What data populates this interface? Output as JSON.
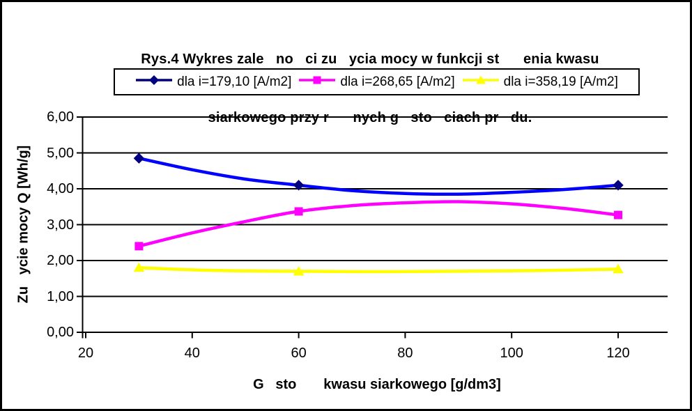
{
  "title": {
    "line1": "Rys.4 Wykres zale   no   ci zu   ycia mocy w funkcji st      enia kwasu",
    "line2": "siarkowego przy r      nych g   sto   ciach pr   du."
  },
  "chart_data": {
    "type": "line",
    "title": "Rys.4 Wykres zale no ci zu ycia mocy w funkcji st enia kwasu siarkowego przy r nych g sto ciach pr du.",
    "xlabel": "G   sto       kwasu siarkowego [g/dm3]",
    "ylabel": "Zu   ycie mocy Q [Wh/g]",
    "legend_position": "top",
    "grid": "horizontal-only",
    "background_color": "#ffffff",
    "grid_color": "#000000",
    "x_axis": {
      "min": 20,
      "max": 130,
      "tick_values": [
        20,
        40,
        60,
        80,
        100,
        120
      ],
      "tick_labels": [
        "20",
        "40",
        "60",
        "80",
        "100",
        "120"
      ]
    },
    "y_axis": {
      "min": 0,
      "max": 6,
      "tick_values": [
        0,
        1,
        2,
        3,
        4,
        5,
        6
      ],
      "tick_labels": [
        "0,00",
        "1,00",
        "2,00",
        "3,00",
        "4,00",
        "5,00",
        "6,00"
      ]
    },
    "series": [
      {
        "name": "dla i=179,10 [A/m2]",
        "line_color": "#0000FF",
        "marker_color": "#000080",
        "marker": "diamond",
        "x": [
          30,
          60,
          120
        ],
        "values": [
          4.85,
          4.1,
          4.1
        ],
        "curve_samples": [
          [
            30,
            4.85
          ],
          [
            40,
            4.53
          ],
          [
            50,
            4.27
          ],
          [
            60,
            4.1
          ],
          [
            70,
            3.95
          ],
          [
            80,
            3.87
          ],
          [
            90,
            3.85
          ],
          [
            100,
            3.9
          ],
          [
            110,
            3.98
          ],
          [
            120,
            4.1
          ]
        ]
      },
      {
        "name": "dla i=268,65 [A/m2]",
        "line_color": "#FF00FF",
        "marker_color": "#FF00FF",
        "marker": "square",
        "x": [
          30,
          60,
          120
        ],
        "values": [
          2.4,
          3.37,
          3.27
        ],
        "curve_samples": [
          [
            30,
            2.4
          ],
          [
            40,
            2.77
          ],
          [
            50,
            3.09
          ],
          [
            60,
            3.37
          ],
          [
            70,
            3.53
          ],
          [
            80,
            3.61
          ],
          [
            90,
            3.64
          ],
          [
            100,
            3.58
          ],
          [
            110,
            3.45
          ],
          [
            120,
            3.27
          ]
        ]
      },
      {
        "name": "dla i=358,19 [A/m2]",
        "line_color": "#FFFF00",
        "marker_color": "#FFFF00",
        "marker": "triangle",
        "x": [
          30,
          60,
          120
        ],
        "values": [
          1.8,
          1.7,
          1.76
        ],
        "curve_samples": [
          [
            30,
            1.8
          ],
          [
            40,
            1.74
          ],
          [
            50,
            1.71
          ],
          [
            60,
            1.7
          ],
          [
            75,
            1.69
          ],
          [
            90,
            1.7
          ],
          [
            105,
            1.72
          ],
          [
            120,
            1.76
          ]
        ]
      }
    ]
  }
}
